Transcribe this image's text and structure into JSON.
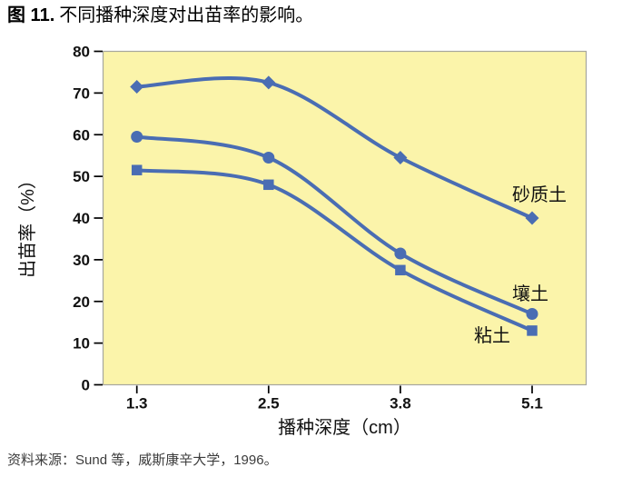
{
  "title": {
    "prefix": "图 11.",
    "text": "不同播种深度对出苗率的影响。"
  },
  "source_note": "资料来源：Sund 等，威斯康辛大学，1996。",
  "chart_data": {
    "type": "line",
    "title": "不同播种深度对出苗率的影响",
    "x": [
      1.3,
      2.5,
      3.8,
      5.1
    ],
    "x_tick_labels": [
      "1.3",
      "2.5",
      "3.8",
      "5.1"
    ],
    "xlabel": "播种深度（cm）",
    "ylabel": "出苗率（%）",
    "ylim": [
      0,
      80
    ],
    "y_tick_step": 10,
    "grid": false,
    "legend_position": "inline-labels-right",
    "series": [
      {
        "name": "砂质土",
        "marker": "diamond",
        "values": [
          71.5,
          72.5,
          54.5,
          40
        ]
      },
      {
        "name": "壤土",
        "marker": "circle",
        "values": [
          59.5,
          54.5,
          31.5,
          17
        ]
      },
      {
        "name": "粘土",
        "marker": "square",
        "values": [
          51.5,
          48,
          27.5,
          13
        ]
      }
    ],
    "colors": {
      "series_blue": "#4a6db3",
      "plot_bg": "#fbf4aa",
      "plot_border": "#a6a69e",
      "tick": "#000000",
      "text": "#111111",
      "source_text": "#3c3c3c"
    }
  }
}
